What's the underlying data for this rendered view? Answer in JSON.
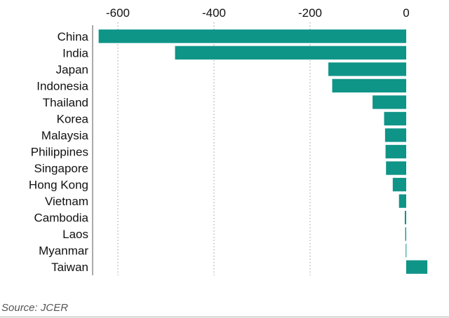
{
  "chart_data": {
    "type": "bar",
    "orientation": "horizontal",
    "categories": [
      "China",
      "India",
      "Japan",
      "Indonesia",
      "Thailand",
      "Korea",
      "Malaysia",
      "Philippines",
      "Singapore",
      "Hong Kong",
      "Vietnam",
      "Cambodia",
      "Laos",
      "Myanmar",
      "Taiwan"
    ],
    "values": [
      -640,
      -481,
      -162,
      -154,
      -70,
      -46,
      -44,
      -43,
      -42,
      -28,
      -15,
      -3,
      -2,
      -1,
      44
    ],
    "xlim": [
      -660,
      50
    ],
    "xticks": [
      -600,
      -400,
      -200,
      0
    ],
    "xtick_labels": [
      "-600",
      "-400",
      "-200",
      "0"
    ],
    "grid": "vertical dotted",
    "bar_color": "#0f9488"
  },
  "footer": {
    "source": "Source: JCER"
  }
}
